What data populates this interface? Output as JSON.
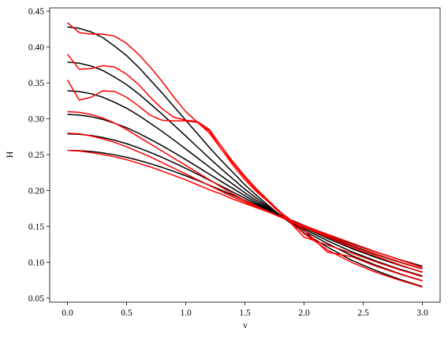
{
  "chart_data": {
    "type": "line",
    "xlabel": "v",
    "ylabel": "H",
    "x": [
      0,
      0.1,
      0.2,
      0.3,
      0.4,
      0.5,
      0.6,
      0.7,
      0.8,
      0.9,
      1.0,
      1.1,
      1.2,
      1.3,
      1.4,
      1.5,
      1.6,
      1.8,
      2.0,
      2.2,
      2.4,
      2.6,
      2.8,
      3.0
    ],
    "xlim": [
      -0.15,
      3.15
    ],
    "ylim": [
      0.0445,
      0.4545
    ],
    "xticks": [
      {
        "value": 0,
        "label": "0.0"
      },
      0.5,
      {
        "value": 1,
        "label": "1.0"
      },
      1.5,
      {
        "value": 2,
        "label": "2.0"
      },
      2.5,
      {
        "value": 3,
        "label": "3.0"
      }
    ],
    "yticks": [
      0.05,
      {
        "value": 0.1,
        "label": "0.10"
      },
      0.15,
      {
        "value": 0.2,
        "label": "0.20"
      },
      0.25,
      {
        "value": 0.3,
        "label": "0.30"
      },
      0.35,
      {
        "value": 0.4,
        "label": "0.40"
      },
      0.45
    ],
    "grid": false,
    "series": [
      {
        "color": "#000000",
        "values": [
          0.428,
          0.426,
          0.421,
          0.413,
          0.401,
          0.388,
          0.372,
          0.354,
          0.336,
          0.317,
          0.298,
          0.279,
          0.26,
          0.242,
          0.225,
          0.208,
          0.193,
          0.165,
          0.141,
          0.121,
          0.103,
          0.0889,
          0.0767,
          0.0663
        ]
      },
      {
        "color": "#000000",
        "values": [
          0.379,
          0.3774,
          0.3735,
          0.3672,
          0.3579,
          0.3476,
          0.335,
          0.3208,
          0.3064,
          0.2912,
          0.2759,
          0.2605,
          0.245,
          0.2302,
          0.216,
          0.2018,
          0.1891,
          0.1651,
          0.144,
          0.126,
          0.1096,
          0.0963,
          0.0845,
          0.0744
        ]
      },
      {
        "color": "#000000",
        "values": [
          0.3391,
          0.3379,
          0.3349,
          0.33,
          0.3228,
          0.3147,
          0.3049,
          0.2938,
          0.2824,
          0.2703,
          0.2579,
          0.2454,
          0.2328,
          0.2205,
          0.2087,
          0.1968,
          0.1859,
          0.1651,
          0.1464,
          0.13,
          0.1149,
          0.1022,
          0.0909,
          0.0809
        ]
      },
      {
        "color": "#000000",
        "values": [
          0.3061,
          0.3052,
          0.3029,
          0.2991,
          0.2937,
          0.2875,
          0.28,
          0.2714,
          0.2625,
          0.2529,
          0.2431,
          0.233,
          0.2227,
          0.2126,
          0.2027,
          0.1927,
          0.1833,
          0.1651,
          0.1484,
          0.1333,
          0.1194,
          0.1072,
          0.0962,
          0.0864
        ]
      },
      {
        "color": "#000000",
        "values": [
          0.279,
          0.2784,
          0.2767,
          0.2739,
          0.27,
          0.2653,
          0.2596,
          0.2531,
          0.2462,
          0.2387,
          0.2309,
          0.2228,
          0.2144,
          0.2061,
          0.1977,
          0.1893,
          0.1811,
          0.1652,
          0.1501,
          0.1361,
          0.123,
          0.1112,
          0.1005,
          0.0908
        ]
      },
      {
        "color": "#000000",
        "values": [
          0.256,
          0.2556,
          0.2544,
          0.2524,
          0.2497,
          0.2463,
          0.2422,
          0.2375,
          0.2323,
          0.2266,
          0.2205,
          0.2141,
          0.2074,
          0.2005,
          0.1935,
          0.1864,
          0.1793,
          0.1652,
          0.1515,
          0.1384,
          0.1261,
          0.1147,
          0.1042,
          0.0946
        ]
      },
      {
        "color": "#ff0000",
        "values": [
          0.434,
          0.42,
          0.418,
          0.418,
          0.415,
          0.405,
          0.39,
          0.372,
          0.352,
          0.33,
          0.31,
          0.295,
          0.28,
          0.258,
          0.238,
          0.218,
          0.2,
          0.168,
          0.14,
          0.117,
          0.1,
          0.0865,
          0.0755,
          0.0655
        ]
      },
      {
        "color": "#ff0000",
        "values": [
          0.39,
          0.369,
          0.37,
          0.374,
          0.372,
          0.362,
          0.348,
          0.33,
          0.314,
          0.302,
          0.298,
          0.296,
          0.285,
          0.262,
          0.24,
          0.22,
          0.202,
          0.17,
          0.145,
          0.114,
          0.108,
          0.095,
          0.084,
          0.074
        ]
      },
      {
        "color": "#ff0000",
        "values": [
          0.354,
          0.326,
          0.33,
          0.339,
          0.338,
          0.33,
          0.318,
          0.305,
          0.298,
          0.297,
          0.297,
          0.295,
          0.283,
          0.258,
          0.235,
          0.215,
          0.198,
          0.17,
          0.135,
          0.124,
          0.113,
          0.101,
          0.09,
          0.08
        ]
      },
      {
        "color": "#ff0000",
        "values": [
          0.31,
          0.309,
          0.306,
          0.301,
          0.294,
          0.285,
          0.275,
          0.265,
          0.255,
          0.245,
          0.235,
          0.225,
          0.215,
          0.205,
          0.195,
          0.186,
          0.178,
          0.163,
          0.149,
          0.135,
          0.121,
          0.109,
          0.097,
          0.086
        ]
      },
      {
        "color": "#ff0000",
        "values": [
          0.28,
          0.279,
          0.276,
          0.272,
          0.267,
          0.261,
          0.254,
          0.247,
          0.239,
          0.231,
          0.223,
          0.215,
          0.207,
          0.199,
          0.191,
          0.184,
          0.177,
          0.163,
          0.15,
          0.137,
          0.124,
          0.112,
          0.101,
          0.091
        ]
      },
      {
        "color": "#ff0000",
        "values": [
          0.256,
          0.255,
          0.253,
          0.25,
          0.247,
          0.243,
          0.238,
          0.233,
          0.227,
          0.221,
          0.215,
          0.208,
          0.201,
          0.195,
          0.188,
          0.182,
          0.176,
          0.164,
          0.151,
          0.139,
          0.127,
          0.115,
          0.104,
          0.093
        ]
      }
    ]
  }
}
